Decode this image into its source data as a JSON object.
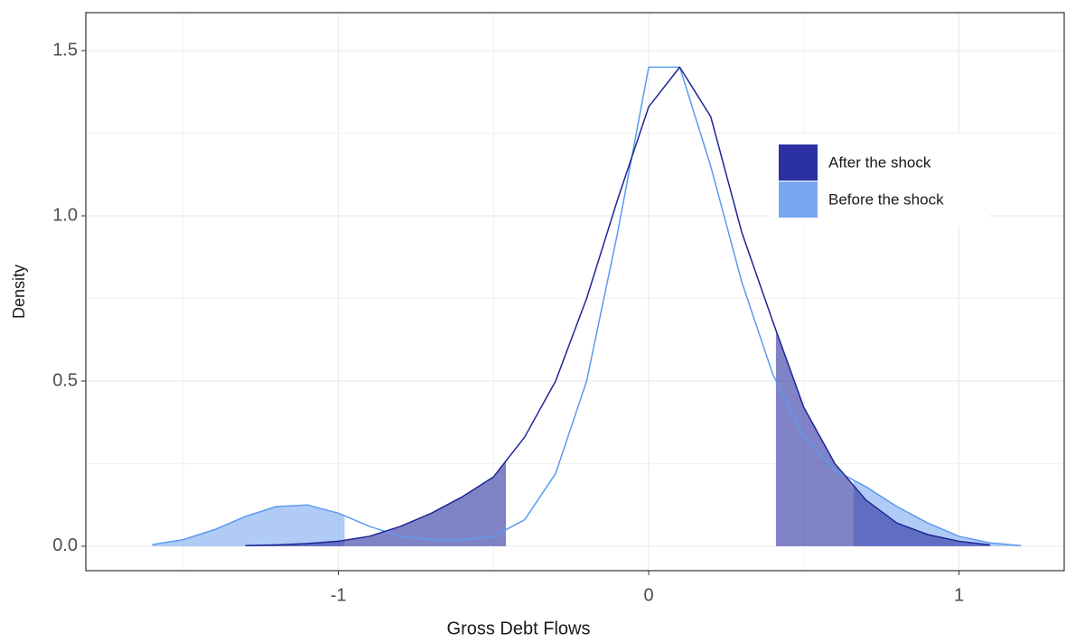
{
  "chart_data": {
    "type": "density",
    "x_label": "Gross Debt Flows",
    "y_label": "Density",
    "x": [
      -1.6,
      -1.5,
      -1.4,
      -1.3,
      -1.2,
      -1.1,
      -1.0,
      -0.9,
      -0.8,
      -0.7,
      -0.6,
      -0.5,
      -0.4,
      -0.3,
      -0.2,
      -0.1,
      0.0,
      0.1,
      0.2,
      0.3,
      0.4,
      0.5,
      0.6,
      0.7,
      0.8,
      0.9,
      1.0,
      1.1,
      1.2
    ],
    "series": [
      {
        "name": "After the shock",
        "color": "#2b31a0",
        "line_color": "#1e2596",
        "values": [
          null,
          null,
          null,
          0.002,
          0.004,
          0.008,
          0.015,
          0.03,
          0.06,
          0.1,
          0.15,
          0.21,
          0.33,
          0.5,
          0.75,
          1.05,
          1.33,
          1.45,
          1.3,
          0.95,
          0.68,
          0.42,
          0.25,
          0.14,
          0.07,
          0.035,
          0.015,
          0.004,
          null
        ],
        "tail_below": -0.46,
        "tail_above": 0.41
      },
      {
        "name": "Before the shock",
        "color": "#7aa8f0",
        "line_color": "#5b9bf0",
        "values": [
          0.005,
          0.02,
          0.05,
          0.09,
          0.12,
          0.125,
          0.1,
          0.06,
          0.03,
          0.02,
          0.02,
          0.03,
          0.08,
          0.22,
          0.5,
          0.95,
          1.45,
          1.45,
          1.15,
          0.8,
          0.52,
          0.33,
          0.23,
          0.18,
          0.12,
          0.07,
          0.03,
          0.01,
          0.002
        ],
        "tail_below": -0.98,
        "tail_above": 0.66
      }
    ],
    "xlim": [
      -1.814,
      1.339
    ],
    "ylim": [
      -0.074,
      1.615
    ],
    "xticks": [
      -1,
      0,
      1
    ],
    "yticks": [
      {
        "value": 0,
        "label": "0.0"
      },
      0.5,
      {
        "value": 1,
        "label": "1.0"
      },
      1.5
    ],
    "xminor": [
      -1.5,
      -0.5,
      0.5
    ],
    "yminor": [
      0.25,
      0.75,
      1.25
    ],
    "grid": true,
    "legend": "right"
  }
}
